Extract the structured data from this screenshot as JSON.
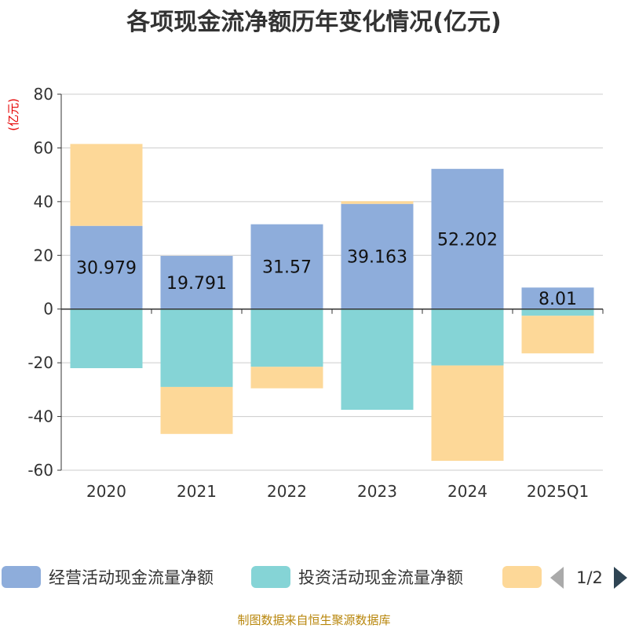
{
  "title": "各项现金流净额历年变化情况(亿元)",
  "unit_label": "(亿元)",
  "source": "制图数据来自恒生聚源数据库",
  "legend_page": "1/2",
  "colors": {
    "operating": "#8eaddb",
    "investing": "#85d4d6",
    "financing": "#fdd898",
    "grid": "#cccccc",
    "axis": "#333333",
    "arrow_prev": "#aaaaaa",
    "arrow_next": "#2f4554"
  },
  "chart_data": {
    "type": "bar",
    "stacked": true,
    "categories": [
      "2020",
      "2021",
      "2022",
      "2023",
      "2024",
      "2025Q1"
    ],
    "ylim": [
      -60,
      80
    ],
    "yticks": [
      -60,
      -40,
      -20,
      0,
      20,
      40,
      60,
      80
    ],
    "series": [
      {
        "name": "经营活动现金流量净额",
        "color_key": "operating",
        "values": [
          30.979,
          19.791,
          31.57,
          39.163,
          52.202,
          8.01
        ],
        "labels": [
          "30.979",
          "19.791",
          "31.57",
          "39.163",
          "52.202",
          "8.01"
        ],
        "show_labels": true
      },
      {
        "name": "投资活动现金流量净额",
        "color_key": "investing",
        "values": [
          -22,
          -29,
          -21.5,
          -37.5,
          -21,
          -2.5
        ],
        "show_labels": false
      },
      {
        "name": "",
        "color_key": "financing",
        "values": [
          30.5,
          -17.5,
          -8,
          1,
          -35.5,
          -14
        ],
        "show_labels": false
      }
    ]
  }
}
